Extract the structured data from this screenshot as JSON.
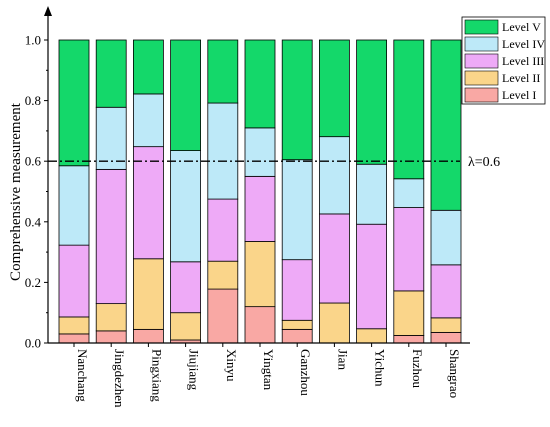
{
  "chart_data": {
    "type": "bar",
    "stacked": true,
    "ylabel": "Comprehensive measurement",
    "xlabel": "",
    "ylim": [
      0,
      1.0
    ],
    "yticks": [
      "0.0",
      "0.2",
      "0.4",
      "0.6",
      "0.8",
      "1.0"
    ],
    "categories": [
      "Nanchang",
      "Jingdezhen",
      "Pingxiang",
      "Jiujiang",
      "Xinyu",
      "Yingtan",
      "Ganzhou",
      "Jian",
      "Yichun",
      "Fuzhou",
      "Shangrao"
    ],
    "series": [
      {
        "name": "Level I",
        "color": "#f9a8a4",
        "values": [
          0.03,
          0.04,
          0.045,
          0.01,
          0.178,
          0.12,
          0.045,
          0.0,
          0.0,
          0.025,
          0.035
        ]
      },
      {
        "name": "Level II",
        "color": "#fad58a",
        "values": [
          0.056,
          0.09,
          0.233,
          0.09,
          0.092,
          0.215,
          0.03,
          0.132,
          0.047,
          0.147,
          0.048
        ]
      },
      {
        "name": "Level III",
        "color": "#eeaaf7",
        "values": [
          0.237,
          0.443,
          0.37,
          0.168,
          0.205,
          0.215,
          0.2,
          0.294,
          0.345,
          0.275,
          0.175
        ]
      },
      {
        "name": "Level IV",
        "color": "#bde9f8",
        "values": [
          0.262,
          0.205,
          0.174,
          0.367,
          0.317,
          0.16,
          0.33,
          0.255,
          0.198,
          0.095,
          0.18
        ]
      },
      {
        "name": "Level V",
        "color": "#14d86a",
        "values": [
          0.415,
          0.222,
          0.178,
          0.365,
          0.208,
          0.29,
          0.395,
          0.319,
          0.41,
          0.458,
          0.562
        ]
      }
    ],
    "reference_line": {
      "value": 0.6,
      "label": "λ=0.6"
    },
    "legend_position": "top-right",
    "legend_order": [
      "Level V",
      "Level IV",
      "Level III",
      "Level II",
      "Level I"
    ]
  }
}
